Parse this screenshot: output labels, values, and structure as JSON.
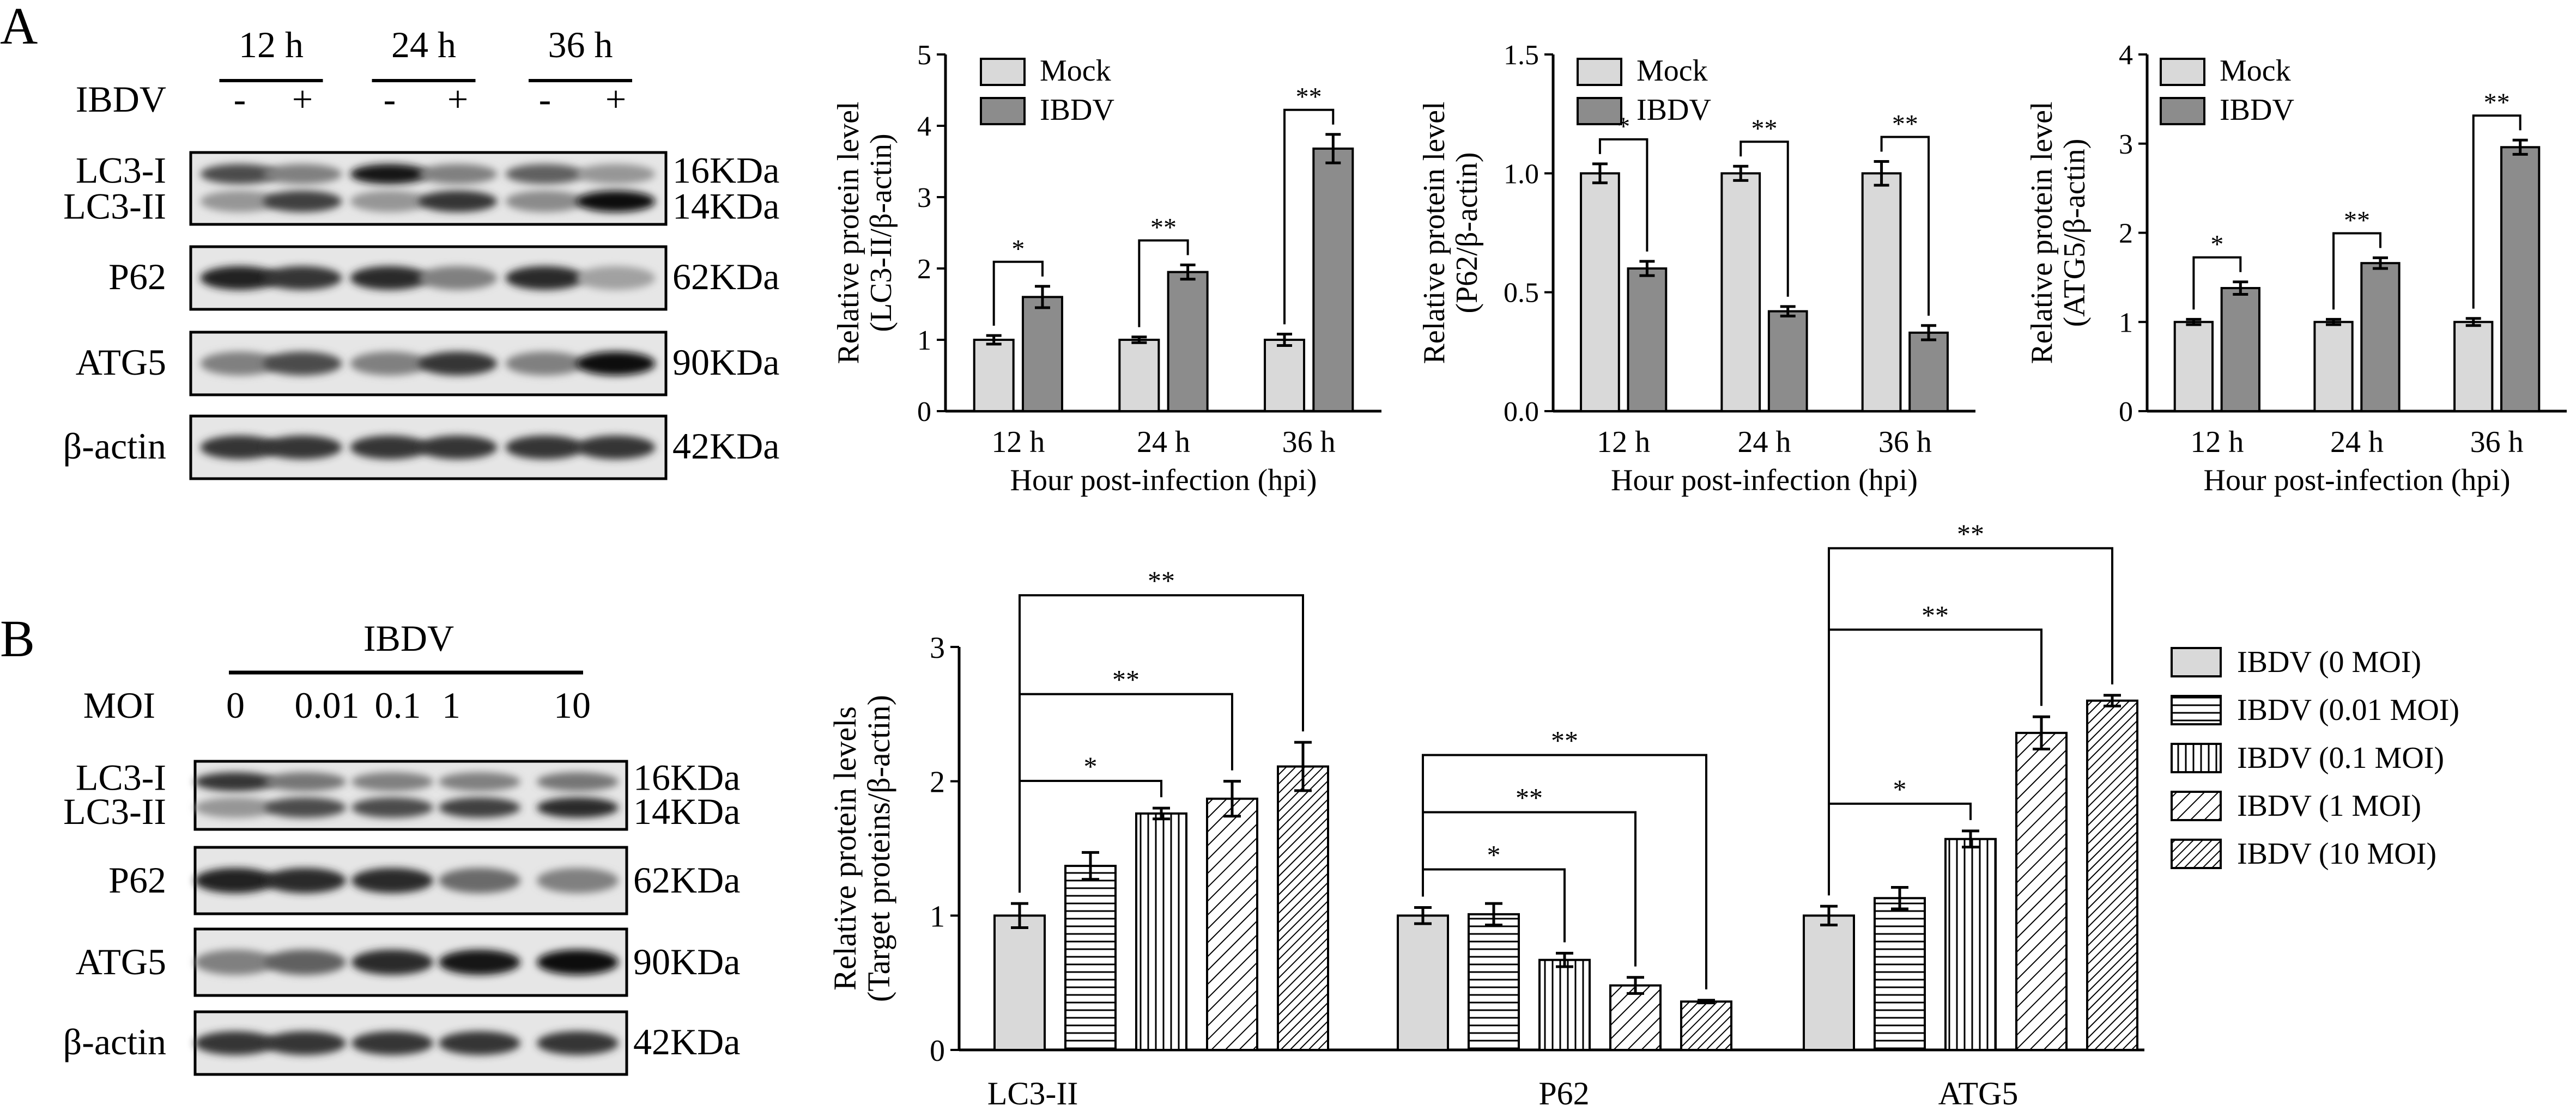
{
  "panel_labels": {
    "a": "A",
    "b": "B"
  },
  "blot_a": {
    "time_labels": [
      "12 h",
      "24 h",
      "36 h"
    ],
    "ibdv_label": "IBDV",
    "lane_signs": [
      "-",
      "+",
      "-",
      "+",
      "-",
      "+"
    ],
    "rows": [
      {
        "name_top": "LC3-I",
        "name_bottom": "LC3-II",
        "kda_top": "16KDa",
        "kda_bottom": "14KDa",
        "band_top": [
          0.7,
          0.45,
          0.95,
          0.45,
          0.6,
          0.35
        ],
        "band_bottom": [
          0.35,
          0.75,
          0.35,
          0.8,
          0.4,
          1.0
        ]
      },
      {
        "name": "P62",
        "kda": "62KDa",
        "band": [
          0.9,
          0.8,
          0.85,
          0.45,
          0.85,
          0.3
        ]
      },
      {
        "name": "ATG5",
        "kda": "90KDa",
        "band": [
          0.45,
          0.7,
          0.45,
          0.8,
          0.45,
          1.0
        ]
      },
      {
        "name": "β-actin",
        "kda": "42KDa",
        "band": [
          0.8,
          0.8,
          0.8,
          0.8,
          0.8,
          0.8
        ]
      }
    ]
  },
  "blot_b": {
    "ibdv_label": "IBDV",
    "moi_label": "MOI",
    "moi_values": [
      "0",
      "0.01",
      "0.1",
      "1",
      "10"
    ],
    "rows": [
      {
        "name_top": "LC3-I",
        "name_bottom": "LC3-II",
        "kda_top": "16KDa",
        "kda_bottom": "14KDa",
        "band_top": [
          0.8,
          0.5,
          0.45,
          0.45,
          0.5
        ],
        "band_bottom": [
          0.35,
          0.7,
          0.7,
          0.75,
          0.85
        ]
      },
      {
        "name": "P62",
        "kda": "62KDa",
        "band": [
          0.9,
          0.85,
          0.85,
          0.55,
          0.45
        ]
      },
      {
        "name": "ATG5",
        "kda": "90KDa",
        "band": [
          0.45,
          0.6,
          0.85,
          0.95,
          1.0
        ]
      },
      {
        "name": "β-actin",
        "kda": "42KDa",
        "band": [
          0.8,
          0.8,
          0.8,
          0.8,
          0.8
        ]
      }
    ]
  },
  "chart_data": [
    {
      "type": "bar",
      "title": "",
      "ylabel_lines": [
        "Relative  protein level",
        "(LC3-II/β-actin)"
      ],
      "xlabel": "Hour post-infection (hpi)",
      "categories": [
        "12 h",
        "24 h",
        "36 h"
      ],
      "ylim": [
        0,
        5
      ],
      "yticks": [
        "0",
        "1",
        "2",
        "3",
        "4",
        "5"
      ],
      "series": [
        {
          "name": "Mock",
          "values": [
            1.0,
            1.0,
            1.0
          ],
          "errors": [
            0.06,
            0.04,
            0.08
          ],
          "color": "#d9d9d9"
        },
        {
          "name": "IBDV",
          "values": [
            1.6,
            1.95,
            3.68
          ],
          "errors": [
            0.15,
            0.1,
            0.2
          ],
          "color": "#8c8c8c"
        }
      ],
      "significance": [
        "*",
        "**",
        "**"
      ],
      "legend_position": "top-left"
    },
    {
      "type": "bar",
      "title": "",
      "ylabel_lines": [
        "Relative  protein level",
        "(P62/β-actin)"
      ],
      "xlabel": "Hour post-infection (hpi)",
      "categories": [
        "12 h",
        "24 h",
        "36 h"
      ],
      "ylim": [
        0,
        1.5
      ],
      "yticks": [
        "0.0",
        "0.5",
        "1.0",
        "1.5"
      ],
      "series": [
        {
          "name": "Mock",
          "values": [
            1.0,
            1.0,
            1.0
          ],
          "errors": [
            0.04,
            0.03,
            0.05
          ],
          "color": "#d9d9d9"
        },
        {
          "name": "IBDV",
          "values": [
            0.6,
            0.42,
            0.33
          ],
          "errors": [
            0.03,
            0.02,
            0.03
          ],
          "color": "#8c8c8c"
        }
      ],
      "significance": [
        "*",
        "**",
        "**"
      ],
      "legend_position": "top-left"
    },
    {
      "type": "bar",
      "title": "",
      "ylabel_lines": [
        "Relative  protein level",
        "(ATG5/β-actin)"
      ],
      "xlabel": "Hour post-infection (hpi)",
      "categories": [
        "12 h",
        "24 h",
        "36 h"
      ],
      "ylim": [
        0,
        4
      ],
      "yticks": [
        "0",
        "1",
        "2",
        "3",
        "4"
      ],
      "series": [
        {
          "name": "Mock",
          "values": [
            1.0,
            1.0,
            1.0
          ],
          "errors": [
            0.03,
            0.03,
            0.04
          ],
          "color": "#d9d9d9"
        },
        {
          "name": "IBDV",
          "values": [
            1.38,
            1.66,
            2.96
          ],
          "errors": [
            0.07,
            0.06,
            0.08
          ],
          "color": "#8c8c8c"
        }
      ],
      "significance": [
        "*",
        "**",
        "**"
      ],
      "legend_position": "top-left"
    },
    {
      "type": "bar",
      "title": "",
      "ylabel_lines": [
        "Relative protein levels",
        "(Target proteins/β-actin)"
      ],
      "xlabel": "",
      "categories": [
        "LC3-II",
        "P62",
        "ATG5"
      ],
      "ylim": [
        0,
        3
      ],
      "yticks": [
        "0",
        "1",
        "2",
        "3"
      ],
      "series": [
        {
          "name": "IBDV (0 MOI)",
          "pattern": "solid",
          "values": [
            1.0,
            1.0,
            1.0
          ],
          "errors": [
            0.09,
            0.06,
            0.07
          ]
        },
        {
          "name": "IBDV (0.01 MOI)",
          "pattern": "horizontal",
          "values": [
            1.37,
            1.01,
            1.13
          ],
          "errors": [
            0.1,
            0.08,
            0.08
          ]
        },
        {
          "name": "IBDV (0.1 MOI)",
          "pattern": "vertical",
          "values": [
            1.76,
            0.67,
            1.57
          ],
          "errors": [
            0.04,
            0.05,
            0.06
          ]
        },
        {
          "name": "IBDV (1 MOI)",
          "pattern": "diagonal",
          "values": [
            1.87,
            0.48,
            2.36
          ],
          "errors": [
            0.13,
            0.06,
            0.12
          ]
        },
        {
          "name": "IBDV (10 MOI)",
          "pattern": "diagonal-dense",
          "values": [
            2.11,
            0.36,
            2.6
          ],
          "errors": [
            0.18,
            0.01,
            0.04
          ]
        }
      ],
      "significance": [
        [
          "*",
          "**",
          "**"
        ],
        [
          "*",
          "**",
          "**"
        ],
        [
          "*",
          "**",
          "**"
        ]
      ],
      "legend_position": "right"
    }
  ]
}
